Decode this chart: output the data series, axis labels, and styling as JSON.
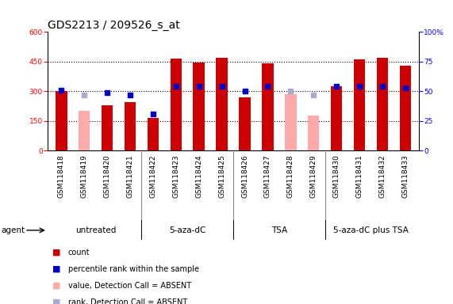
{
  "title": "GDS2213 / 209526_s_at",
  "samples": [
    "GSM118418",
    "GSM118419",
    "GSM118420",
    "GSM118421",
    "GSM118422",
    "GSM118423",
    "GSM118424",
    "GSM118425",
    "GSM118426",
    "GSM118427",
    "GSM118428",
    "GSM118429",
    "GSM118430",
    "GSM118431",
    "GSM118432",
    "GSM118433"
  ],
  "count_present": [
    300,
    0,
    230,
    245,
    165,
    465,
    445,
    468,
    270,
    440,
    0,
    0,
    325,
    460,
    468,
    430
  ],
  "count_absent": [
    0,
    200,
    0,
    0,
    0,
    0,
    0,
    0,
    0,
    0,
    285,
    175,
    0,
    0,
    0,
    0
  ],
  "pct_present": [
    51,
    0,
    49,
    47,
    31,
    54,
    54,
    54,
    50,
    54,
    0,
    0,
    54,
    54,
    54,
    53
  ],
  "pct_absent": [
    0,
    47,
    0,
    0,
    0,
    0,
    0,
    0,
    0,
    0,
    50,
    47,
    0,
    0,
    0,
    0
  ],
  "groups": [
    {
      "label": "untreated",
      "start": 0,
      "end": 4
    },
    {
      "label": "5-aza-dC",
      "start": 4,
      "end": 8
    },
    {
      "label": "TSA",
      "start": 8,
      "end": 12
    },
    {
      "label": "5-aza-dC plus TSA",
      "start": 12,
      "end": 16
    }
  ],
  "ylim_left": [
    0,
    600
  ],
  "ylim_right": [
    0,
    100
  ],
  "yticks_left": [
    0,
    150,
    300,
    450,
    600
  ],
  "yticks_right": [
    0,
    25,
    50,
    75,
    100
  ],
  "bar_width": 0.5,
  "count_color": "#cc0000",
  "absent_bar_color": "#ffaaaa",
  "rank_present_color": "#0000cc",
  "rank_absent_color": "#aaaacc",
  "group_color": "#99ee99",
  "sample_bg_color": "#cccccc",
  "plot_bg": "#ffffff",
  "title_fontsize": 10,
  "tick_fontsize": 6.5,
  "legend_fontsize": 7
}
